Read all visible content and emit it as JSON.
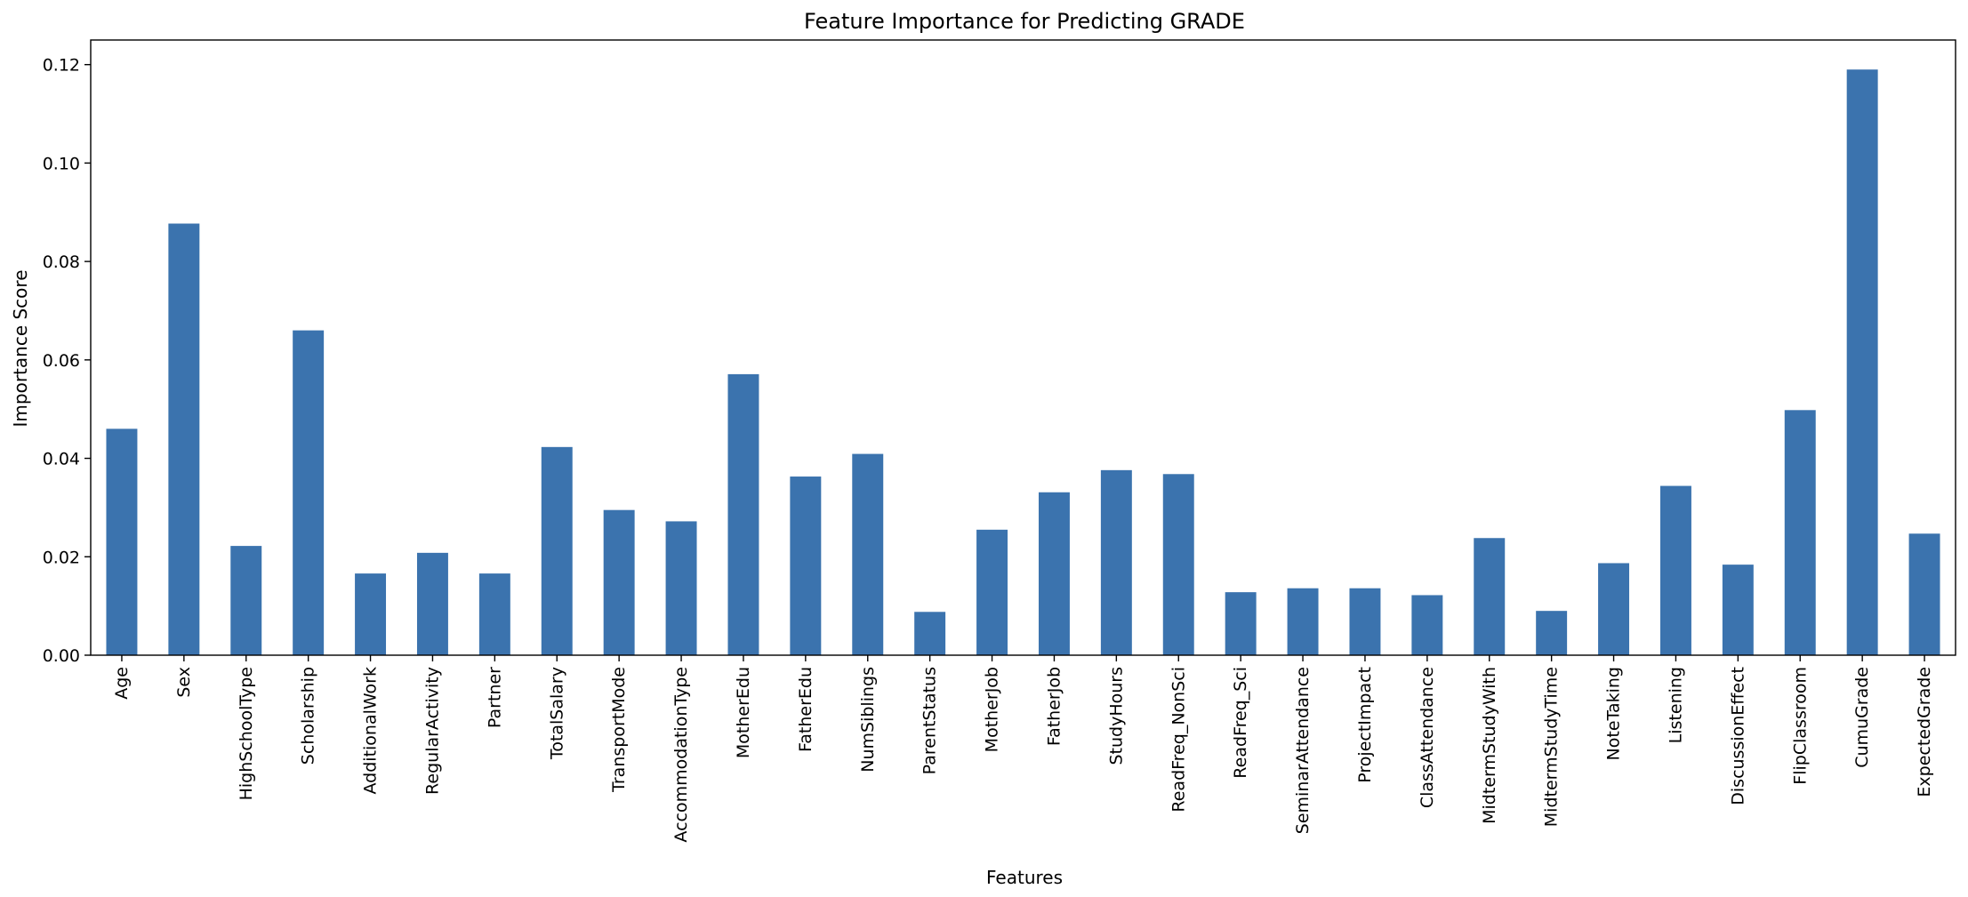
{
  "chart_data": {
    "type": "bar",
    "title": "Feature Importance for Predicting GRADE",
    "xlabel": "Features",
    "ylabel": "Importance Score",
    "ylim": [
      0,
      0.125
    ],
    "yticks": [
      "0.00",
      "0.02",
      "0.04",
      "0.06",
      "0.08",
      "0.10",
      "0.12"
    ],
    "grid": false,
    "bar_color": "#3b73ae",
    "categories": [
      "Age",
      "Sex",
      "HighSchoolType",
      "Scholarship",
      "AdditionalWork",
      "RegularActivity",
      "Partner",
      "TotalSalary",
      "TransportMode",
      "AccommodationType",
      "MotherEdu",
      "FatherEdu",
      "NumSiblings",
      "ParentStatus",
      "MotherJob",
      "FatherJob",
      "StudyHours",
      "ReadFreq_NonSci",
      "ReadFreq_Sci",
      "SeminarAttendance",
      "ProjectImpact",
      "ClassAttendance",
      "MidtermStudyWith",
      "MidtermStudyTime",
      "NoteTaking",
      "Listening",
      "DiscussionEffect",
      "FlipClassroom",
      "CumuGrade",
      "ExpectedGrade"
    ],
    "values": [
      0.046,
      0.0877,
      0.0222,
      0.066,
      0.0166,
      0.0208,
      0.0166,
      0.0423,
      0.0295,
      0.0272,
      0.0571,
      0.0363,
      0.0409,
      0.0088,
      0.0255,
      0.0331,
      0.0376,
      0.0368,
      0.0128,
      0.0136,
      0.0136,
      0.0122,
      0.0238,
      0.009,
      0.0187,
      0.0344,
      0.0184,
      0.0498,
      0.119,
      0.0247
    ]
  }
}
